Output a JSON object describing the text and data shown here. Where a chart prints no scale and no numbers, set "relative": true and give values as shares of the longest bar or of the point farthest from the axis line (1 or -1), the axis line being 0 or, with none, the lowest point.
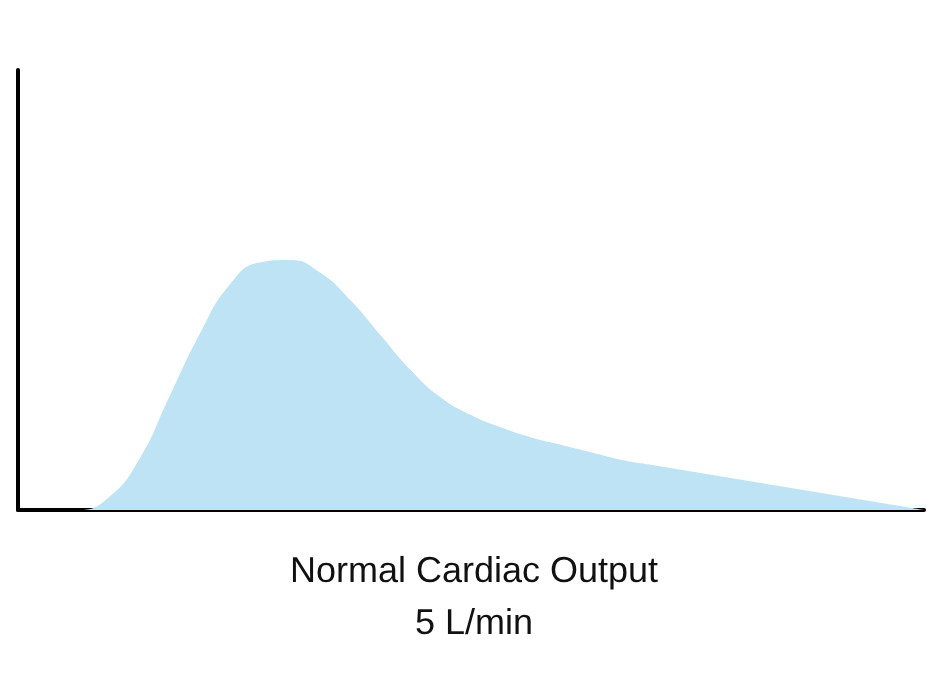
{
  "chart_data": {
    "type": "area",
    "relative": true,
    "xlabel": "Normal Cardiac Output",
    "annotations": [
      "5 L/min"
    ],
    "color": "#bde3f5",
    "marker": "none",
    "categories": [
      null,
      null,
      null,
      null,
      null,
      null,
      null,
      null,
      null,
      null,
      null,
      null,
      null,
      null,
      null,
      null,
      null,
      null,
      null,
      null,
      null,
      null,
      null,
      null,
      null,
      null,
      null,
      null,
      null,
      null,
      null
    ],
    "values": [
      0,
      0,
      0,
      0.05,
      0.2,
      0.45,
      0.7,
      0.9,
      0.99,
      1,
      0.95,
      0.84,
      0.7,
      0.56,
      0.45,
      0.38,
      0.33,
      0.29,
      0.26,
      0.23,
      0.2,
      0.18,
      0.16,
      0.14,
      0.12,
      0.1,
      0.08,
      0.06,
      0.04,
      0.02,
      0
    ]
  }
}
